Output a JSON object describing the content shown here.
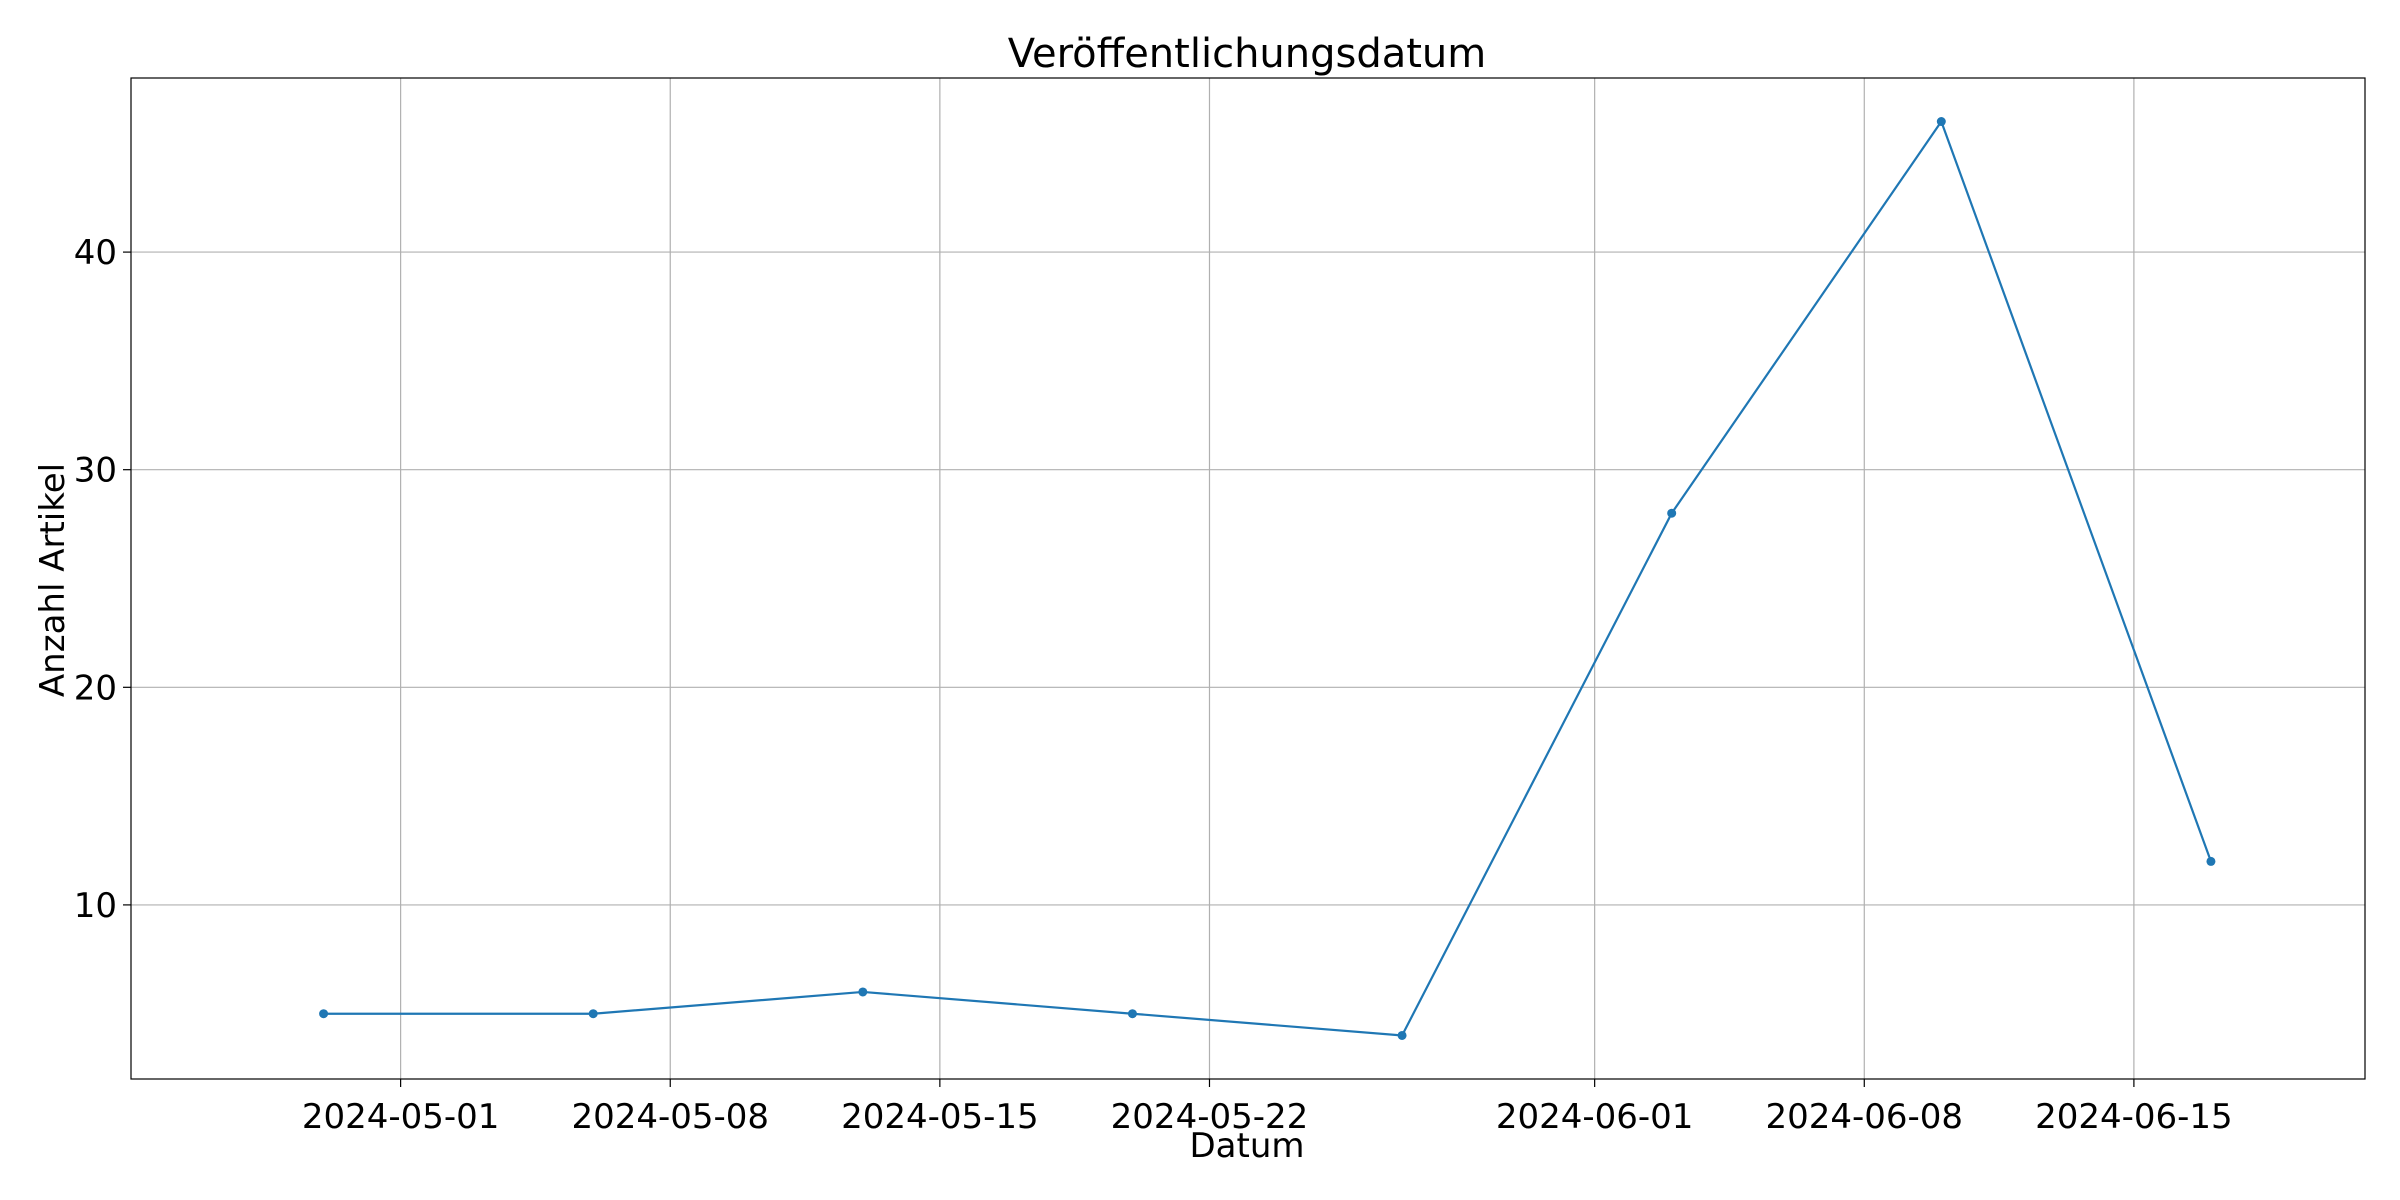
{
  "chart_data": {
    "type": "line",
    "title": "Veröffentlichungsdatum",
    "xlabel": "Datum",
    "ylabel": "Anzahl Artikel",
    "grid": true,
    "x_type": "date",
    "xlim": [
      "2024-04-24",
      "2024-06-21"
    ],
    "ylim": [
      2,
      48
    ],
    "x_ticks": [
      "2024-05-01",
      "2024-05-08",
      "2024-05-15",
      "2024-05-22",
      "2024-06-01",
      "2024-06-08",
      "2024-06-15"
    ],
    "y_ticks": [
      10,
      20,
      30,
      40
    ],
    "colors": {
      "series": "#1f77b4"
    },
    "series": [
      {
        "x": [
          "2024-04-29",
          "2024-05-06",
          "2024-05-13",
          "2024-05-20",
          "2024-05-27",
          "2024-06-03",
          "2024-06-10",
          "2024-06-17"
        ],
        "y": [
          5,
          5,
          6,
          5,
          4,
          28,
          46,
          12
        ]
      }
    ]
  }
}
